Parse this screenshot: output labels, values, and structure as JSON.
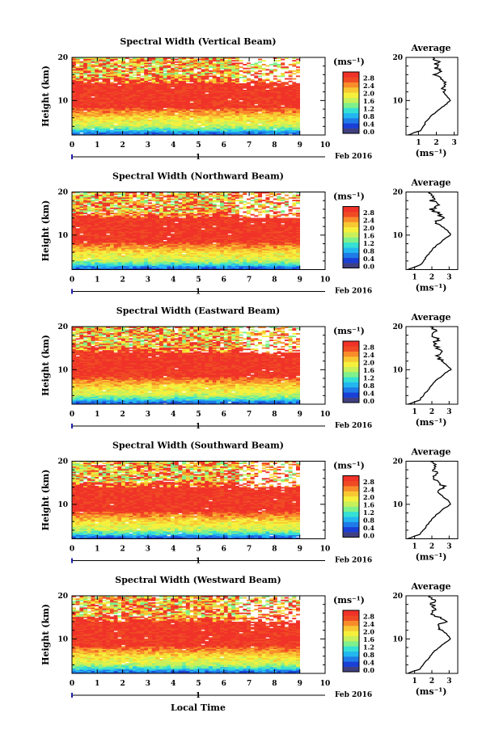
{
  "chart_data": {
    "type": "heatmap",
    "x_ticks": [
      "0",
      "1",
      "2",
      "3",
      "4",
      "5",
      "6",
      "7",
      "8",
      "9",
      "10"
    ],
    "x_range": [
      0,
      10
    ],
    "y_range": [
      2,
      20
    ],
    "y_ticks": [
      "10",
      "20"
    ],
    "ylabel": "Height (km)",
    "date_day": "1",
    "date_label": "Feb 2016",
    "colorbar_unit": "(ms⁻¹)",
    "colorbar_ticks": [
      "0.0",
      "0.4",
      "0.8",
      "1.2",
      "1.6",
      "2.0",
      "2.4",
      "2.8"
    ],
    "colorbar_colors": [
      "#404080",
      "#1a3fd6",
      "#1f7be8",
      "#23b7f0",
      "#35e0d4",
      "#7ef08c",
      "#c8f05a",
      "#f5f03c",
      "#f8c832",
      "#f88c2a",
      "#f04a24",
      "#f03228"
    ],
    "avg_title": "Average",
    "avg_unit": "(ms⁻¹)",
    "xlabel": "Local Time",
    "panels": [
      {
        "title": "Spectral Width (Vertical Beam)",
        "avg_ticks": [
          "1",
          "2",
          "3"
        ],
        "avg_range": [
          0.3,
          3.2
        ],
        "avg_profile": [
          [
            2,
            0.4
          ],
          [
            3,
            1.1
          ],
          [
            4,
            1.3
          ],
          [
            5,
            1.4
          ],
          [
            6,
            1.6
          ],
          [
            7,
            1.9
          ],
          [
            8,
            2.2
          ],
          [
            9,
            2.5
          ],
          [
            10,
            2.8
          ],
          [
            11,
            2.6
          ],
          [
            12,
            2.4
          ],
          [
            13,
            2.3
          ],
          [
            14,
            2.5
          ],
          [
            15,
            2.2
          ],
          [
            16,
            2.0
          ],
          [
            17,
            2.2
          ],
          [
            18,
            1.9
          ],
          [
            19,
            2.1
          ],
          [
            20,
            1.8
          ]
        ]
      },
      {
        "title": "Spectral Width (Northward Beam)",
        "avg_ticks": [
          "1",
          "2",
          "3"
        ],
        "avg_range": [
          0.5,
          3.5
        ],
        "avg_profile": [
          [
            2,
            0.6
          ],
          [
            3,
            1.3
          ],
          [
            4,
            1.5
          ],
          [
            5,
            1.7
          ],
          [
            6,
            1.9
          ],
          [
            7,
            2.1
          ],
          [
            8,
            2.4
          ],
          [
            9,
            2.7
          ],
          [
            10,
            3.1
          ],
          [
            11,
            2.9
          ],
          [
            12,
            2.6
          ],
          [
            13,
            2.3
          ],
          [
            14,
            2.6
          ],
          [
            15,
            2.4
          ],
          [
            16,
            2.0
          ],
          [
            17,
            2.3
          ],
          [
            18,
            2.0
          ],
          [
            19,
            2.2
          ],
          [
            20,
            1.9
          ]
        ]
      },
      {
        "title": "Spectral Width (Eastward Beam)",
        "avg_ticks": [
          "1",
          "2",
          "3"
        ],
        "avg_range": [
          0.5,
          3.5
        ],
        "avg_profile": [
          [
            2,
            0.6
          ],
          [
            3,
            1.3
          ],
          [
            4,
            1.5
          ],
          [
            5,
            1.7
          ],
          [
            6,
            1.9
          ],
          [
            7,
            2.1
          ],
          [
            8,
            2.4
          ],
          [
            9,
            2.7
          ],
          [
            10,
            3.1
          ],
          [
            11,
            2.9
          ],
          [
            12,
            2.6
          ],
          [
            13,
            2.3
          ],
          [
            14,
            2.7
          ],
          [
            15,
            2.4
          ],
          [
            16,
            2.1
          ],
          [
            17,
            2.3
          ],
          [
            18,
            2.0
          ],
          [
            19,
            2.2
          ],
          [
            20,
            1.9
          ]
        ]
      },
      {
        "title": "Spectral Width (Southward Beam)",
        "avg_ticks": [
          "1",
          "2",
          "3"
        ],
        "avg_range": [
          0.5,
          3.5
        ],
        "avg_profile": [
          [
            2,
            0.6
          ],
          [
            3,
            1.3
          ],
          [
            4,
            1.5
          ],
          [
            5,
            1.7
          ],
          [
            6,
            1.9
          ],
          [
            7,
            2.1
          ],
          [
            8,
            2.4
          ],
          [
            9,
            2.7
          ],
          [
            10,
            3.1
          ],
          [
            11,
            2.9
          ],
          [
            12,
            2.6
          ],
          [
            13,
            2.4
          ],
          [
            14,
            2.7
          ],
          [
            15,
            2.5
          ],
          [
            16,
            2.1
          ],
          [
            17,
            2.3
          ],
          [
            18,
            2.0
          ],
          [
            19,
            2.2
          ],
          [
            20,
            1.9
          ]
        ]
      },
      {
        "title": "Spectral Width (Westward Beam)",
        "avg_ticks": [
          "1",
          "2",
          "3"
        ],
        "avg_range": [
          0.5,
          3.5
        ],
        "avg_profile": [
          [
            2,
            0.6
          ],
          [
            3,
            1.3
          ],
          [
            4,
            1.5
          ],
          [
            5,
            1.7
          ],
          [
            6,
            1.9
          ],
          [
            7,
            2.1
          ],
          [
            8,
            2.4
          ],
          [
            9,
            2.7
          ],
          [
            10,
            3.1
          ],
          [
            11,
            2.9
          ],
          [
            12,
            2.6
          ],
          [
            13,
            2.4
          ],
          [
            14,
            2.7
          ],
          [
            15,
            2.4
          ],
          [
            16,
            2.0
          ],
          [
            17,
            2.2
          ],
          [
            18,
            2.0
          ],
          [
            19,
            2.1
          ],
          [
            20,
            1.9
          ]
        ]
      }
    ]
  }
}
